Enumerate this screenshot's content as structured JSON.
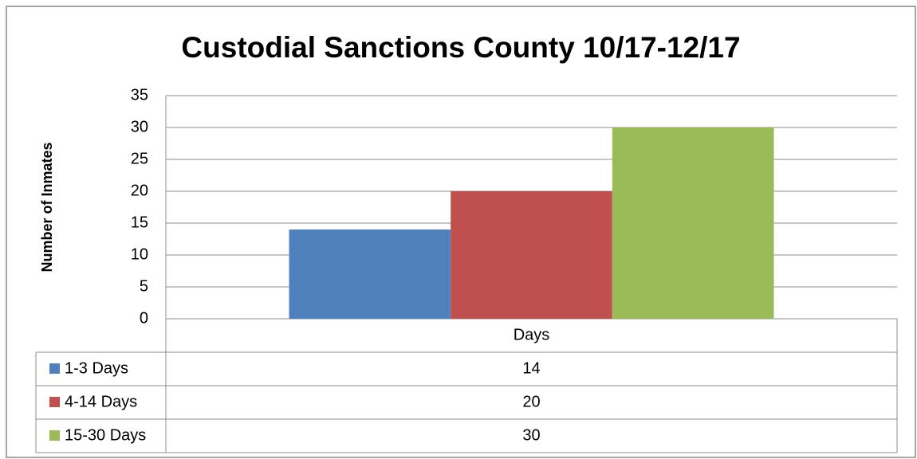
{
  "chart_data": {
    "type": "bar",
    "title": "Custodial Sanctions County 10/17-12/17",
    "y_label": "Number of Inmates",
    "categories": [
      "Days"
    ],
    "series": [
      {
        "name": "1-3 Days",
        "color": "#4f81bd",
        "values": [
          14
        ]
      },
      {
        "name": "4-14 Days",
        "color": "#c0504d",
        "values": [
          20
        ]
      },
      {
        "name": "15-30 Days",
        "color": "#9bbb59",
        "values": [
          30
        ]
      }
    ],
    "ylim": [
      0,
      35
    ],
    "yticks": [
      0,
      5,
      10,
      15,
      20,
      25,
      30,
      35
    ],
    "grid": true,
    "data_table": true
  }
}
